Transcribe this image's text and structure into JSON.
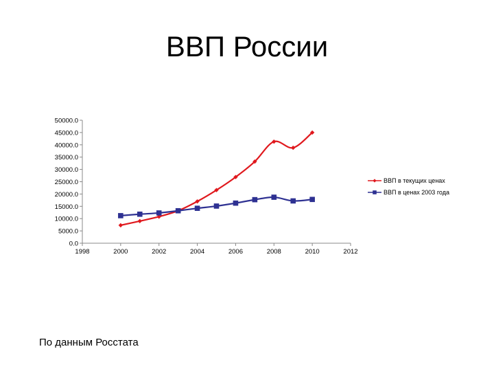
{
  "title": "ВВП России",
  "source_note": "По данным Росстата",
  "chart_data": {
    "type": "line",
    "title": "",
    "xlabel": "",
    "ylabel": "",
    "xlim": [
      1998,
      2012
    ],
    "ylim": [
      0,
      50000
    ],
    "x_ticks": [
      "1998",
      "2000",
      "2002",
      "2004",
      "2006",
      "2008",
      "2010",
      "2012"
    ],
    "y_ticks": [
      "0.0",
      "5000.0",
      "10000.0",
      "15000.0",
      "20000.0",
      "25000.0",
      "30000.0",
      "35000.0",
      "40000.0",
      "45000.0",
      "50000.0"
    ],
    "grid": false,
    "legend": "right",
    "x": [
      2000,
      2001,
      2002,
      2003,
      2004,
      2005,
      2006,
      2007,
      2008,
      2009,
      2010
    ],
    "series": [
      {
        "name": "ВВП в текущих ценах",
        "color": "#e0191e",
        "marker": "diamond",
        "values": [
          7300,
          9000,
          10800,
          13200,
          17000,
          21600,
          26900,
          33200,
          41300,
          38800,
          45000
        ]
      },
      {
        "name": "ВВП в ценах 2003 года",
        "color": "#2e3192",
        "marker": "square",
        "values": [
          11200,
          11800,
          12300,
          13200,
          14200,
          15100,
          16300,
          17700,
          18700,
          17200,
          17800
        ]
      }
    ]
  }
}
